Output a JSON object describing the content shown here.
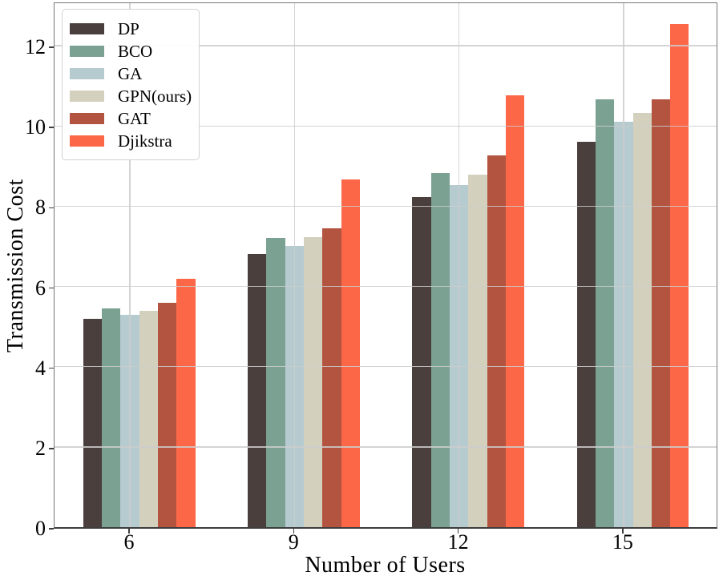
{
  "figure": {
    "background": "#ffffff",
    "text_color": "#000000",
    "grid_color": "#d5d5d5",
    "spine_color": "#767676"
  },
  "chart_data": {
    "type": "bar",
    "title": "",
    "xlabel": "Number of Users",
    "ylabel": "Transmission Cost",
    "categories": [
      "6",
      "9",
      "12",
      "15"
    ],
    "y_ticks": [
      0,
      2,
      4,
      6,
      8,
      10,
      12
    ],
    "ylim": [
      0,
      13.12
    ],
    "grid": {
      "horizontal": true,
      "vertical": true,
      "drawn_over_bars": true
    },
    "legend_position": "upper-left",
    "series": [
      {
        "name": "DP",
        "color": "#4A3F3C",
        "values": [
          5.2,
          6.8,
          8.22,
          9.6
        ]
      },
      {
        "name": "BCO",
        "color": "#7BA192",
        "values": [
          5.45,
          7.2,
          8.82,
          10.67
        ]
      },
      {
        "name": "GA",
        "color": "#B6CBD0",
        "values": [
          5.3,
          7.0,
          8.52,
          10.1
        ]
      },
      {
        "name": "GPN(ours)",
        "color": "#D3D0BE",
        "values": [
          5.4,
          7.22,
          8.78,
          10.32
        ]
      },
      {
        "name": "GAT",
        "color": "#B35440",
        "values": [
          5.6,
          7.45,
          9.26,
          10.67
        ]
      },
      {
        "name": "Djikstra",
        "color": "#FC6748",
        "values": [
          6.2,
          8.67,
          10.76,
          12.54
        ]
      }
    ]
  }
}
